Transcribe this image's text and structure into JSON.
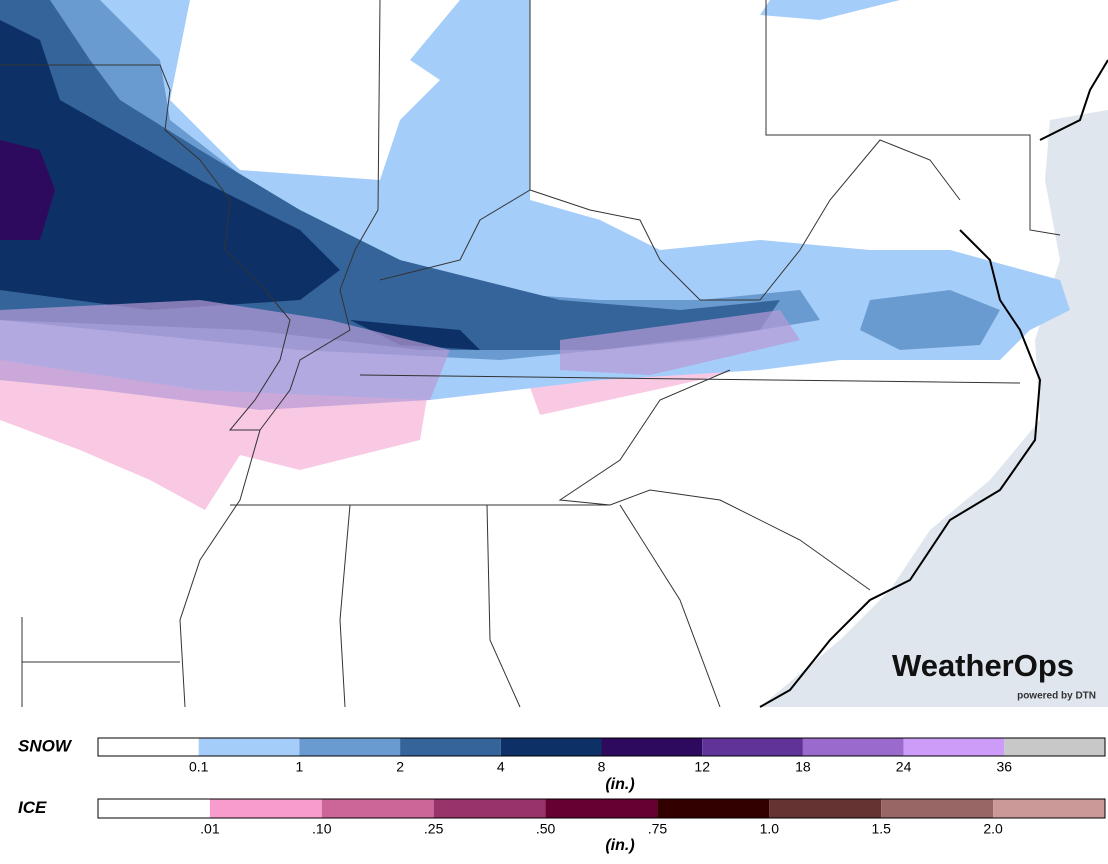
{
  "logo": {
    "name": "WeatherOps",
    "tagline": "powered by DTN"
  },
  "legends": [
    {
      "label": "SNOW",
      "unit": "(in.)",
      "colors": [
        "#ffffff",
        "#a5cdf9",
        "#6a9bd0",
        "#34649a",
        "#0d3166",
        "#2e0a5e",
        "#5f3398",
        "#9a6acc",
        "#cc9cf8",
        "#c8c8c8"
      ],
      "ticks": [
        "0.1",
        "1",
        "2",
        "4",
        "8",
        "12",
        "18",
        "24",
        "36"
      ]
    },
    {
      "label": "ICE",
      "unit": "(in.)",
      "colors": [
        "#ffffff",
        "#f79ccc",
        "#cc6699",
        "#99336b",
        "#660033",
        "#330000",
        "#663333",
        "#996666",
        "#cc9999"
      ],
      "ticks": [
        ".01",
        ".10",
        ".25",
        ".50",
        ".75",
        "1.0",
        "1.5",
        "2.0"
      ]
    }
  ]
}
